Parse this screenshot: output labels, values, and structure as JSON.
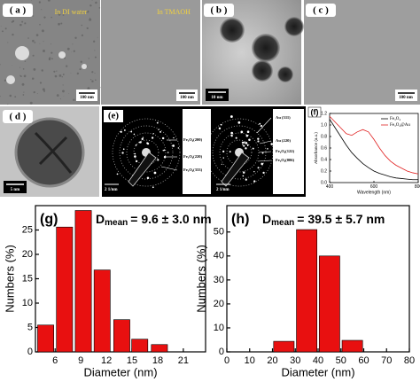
{
  "panels": {
    "a": {
      "label": "( a )",
      "left_caption": "In DI water",
      "right_caption": "In TMAOH",
      "scale_bars": [
        "100 nm",
        "100 nm"
      ]
    },
    "b": {
      "label": "( b )",
      "scale_bar": "10 nm"
    },
    "c": {
      "label": "( c )",
      "scale_bar": "100 nm"
    },
    "d": {
      "label": "( d )",
      "scale_bar": "5 nm"
    },
    "e": {
      "label": "(e)",
      "left_rings": [
        "Fe₃O₄(200)",
        "Fe₃O₄(220)",
        "Fe₃O₄(333)"
      ],
      "right_rings": [
        "Au (311)",
        "Au (220)",
        "Fe₃O₄(122)",
        "Fe₃O₄(006)"
      ],
      "scale_bars": [
        "2 1/nm",
        "2 1/nm"
      ]
    }
  },
  "chart_data": [
    {
      "type": "line",
      "panel_label": "(f)",
      "x_label": "Wavelength (nm)",
      "y_label": "Absorbance (a.u.)",
      "x": [
        400,
        425,
        450,
        475,
        500,
        525,
        550,
        575,
        600,
        625,
        650,
        675,
        700,
        725,
        750,
        775,
        800
      ],
      "series": [
        {
          "name": "Fe₃O₄",
          "color": "#000000",
          "values": [
            1.1,
            0.95,
            0.8,
            0.65,
            0.52,
            0.42,
            0.33,
            0.26,
            0.2,
            0.16,
            0.13,
            0.1,
            0.08,
            0.07,
            0.06,
            0.05,
            0.05
          ]
        },
        {
          "name": "Fe₃O₄@Au",
          "color": "#e02020",
          "values": [
            1.15,
            1.05,
            0.95,
            0.85,
            0.82,
            0.88,
            0.92,
            0.88,
            0.75,
            0.6,
            0.47,
            0.37,
            0.3,
            0.25,
            0.2,
            0.17,
            0.15
          ]
        }
      ],
      "xlim": [
        400,
        800
      ],
      "xticks": [
        400,
        600,
        800
      ],
      "ylim": [
        0,
        1.2
      ],
      "yticks": [
        {
          "value": 0,
          "label": "0.0"
        },
        0.2,
        0.4,
        0.6,
        0.8,
        {
          "value": 1,
          "label": "1.0"
        },
        1.2
      ],
      "legend": "upper-right"
    },
    {
      "type": "bar",
      "panel_label": "(g)",
      "annotation": {
        "symbol": "D",
        "subscript": "mean",
        "text": "= 9.6 ± 3.0 nm"
      },
      "x_label": "Diameter (nm)",
      "y_label": "Numbers (%)",
      "x": [
        4.9,
        7.1,
        9.3,
        11.5,
        13.8,
        15.9,
        18.2
      ],
      "values": [
        5.5,
        25.6,
        29,
        16.8,
        6.6,
        2.6,
        1.5
      ],
      "color": "#e81010",
      "xlim": [
        3.7,
        23.6
      ],
      "xticks": [
        6,
        9,
        12,
        15,
        18,
        21
      ],
      "ylim": [
        0,
        30
      ],
      "yticks": [
        0,
        5,
        10,
        15,
        20,
        25
      ]
    },
    {
      "type": "bar",
      "panel_label": "(h)",
      "annotation": {
        "symbol": "D",
        "subscript": "mean",
        "text": "= 39.5 ± 5.7 nm"
      },
      "x_label": "Diameter (nm)",
      "y_label": "Numbers (%)",
      "x": [
        25,
        35,
        45,
        55
      ],
      "values": [
        4.4,
        51,
        40,
        4.8
      ],
      "color": "#e81010",
      "xlim": [
        0,
        80
      ],
      "xticks": [
        0,
        10,
        20,
        30,
        40,
        50,
        60,
        70,
        80
      ],
      "ylim": [
        0,
        61
      ],
      "yticks": [
        0,
        10,
        20,
        30,
        40,
        50
      ]
    }
  ]
}
